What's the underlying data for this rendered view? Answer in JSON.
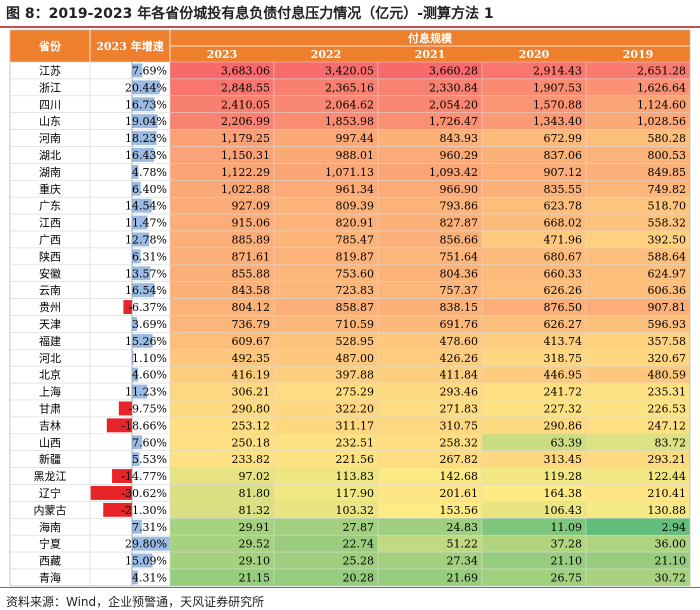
{
  "page": {
    "title": "图 8：2019-2023 年各省份城投有息负债付息压力情况（亿元）-测算方法 1",
    "source": "资料来源：Wind，企业预警通，天风证券研究所"
  },
  "colors": {
    "header_bg": "#ee7f2d",
    "header_text": "#ffffff",
    "grid": "#d9d9d9",
    "bar_pos": "#9bbbe3",
    "bar_neg": "#e8242b",
    "heat_high": "#f8696b",
    "heat_mid": "#ffeb84",
    "heat_low": "#63be7b"
  },
  "chart_data": {
    "type": "table",
    "header": {
      "province": "省份",
      "growth": "2023 年增速",
      "group": "付息规模"
    },
    "years": [
      "2023",
      "2022",
      "2021",
      "2020",
      "2019"
    ],
    "rows": [
      {
        "province": "江苏",
        "growth": "7.69%",
        "g": 7.69,
        "values": [
          3683.06,
          3420.05,
          3660.28,
          2914.43,
          2651.28
        ]
      },
      {
        "province": "浙江",
        "growth": "20.44%",
        "g": 20.44,
        "values": [
          2848.55,
          2365.16,
          2330.84,
          1907.53,
          1626.64
        ]
      },
      {
        "province": "四川",
        "growth": "16.73%",
        "g": 16.73,
        "values": [
          2410.05,
          2064.62,
          2054.2,
          1570.88,
          1124.6
        ]
      },
      {
        "province": "山东",
        "growth": "19.04%",
        "g": 19.04,
        "values": [
          2206.99,
          1853.98,
          1726.47,
          1343.4,
          1028.56
        ]
      },
      {
        "province": "河南",
        "growth": "18.23%",
        "g": 18.23,
        "values": [
          1179.25,
          997.44,
          843.93,
          672.99,
          580.28
        ]
      },
      {
        "province": "湖北",
        "growth": "16.43%",
        "g": 16.43,
        "values": [
          1150.31,
          988.01,
          960.29,
          837.06,
          800.53
        ]
      },
      {
        "province": "湖南",
        "growth": "4.78%",
        "g": 4.78,
        "values": [
          1122.29,
          1071.13,
          1093.42,
          907.12,
          849.85
        ]
      },
      {
        "province": "重庆",
        "growth": "6.40%",
        "g": 6.4,
        "values": [
          1022.88,
          961.34,
          966.9,
          835.55,
          749.82
        ]
      },
      {
        "province": "广东",
        "growth": "14.54%",
        "g": 14.54,
        "values": [
          927.09,
          809.39,
          793.86,
          623.78,
          518.7
        ]
      },
      {
        "province": "江西",
        "growth": "11.47%",
        "g": 11.47,
        "values": [
          915.06,
          820.91,
          827.87,
          668.02,
          558.32
        ]
      },
      {
        "province": "广西",
        "growth": "12.78%",
        "g": 12.78,
        "values": [
          885.89,
          785.47,
          856.66,
          471.96,
          392.5
        ]
      },
      {
        "province": "陕西",
        "growth": "6.31%",
        "g": 6.31,
        "values": [
          871.61,
          819.87,
          751.64,
          680.67,
          588.64
        ]
      },
      {
        "province": "安徽",
        "growth": "13.57%",
        "g": 13.57,
        "values": [
          855.88,
          753.6,
          804.36,
          660.33,
          624.97
        ]
      },
      {
        "province": "云南",
        "growth": "16.54%",
        "g": 16.54,
        "values": [
          843.58,
          723.83,
          757.37,
          626.26,
          606.36
        ]
      },
      {
        "province": "贵州",
        "growth": "-6.37%",
        "g": -6.37,
        "values": [
          804.12,
          858.87,
          838.15,
          876.5,
          907.81
        ]
      },
      {
        "province": "天津",
        "growth": "3.69%",
        "g": 3.69,
        "values": [
          736.79,
          710.59,
          691.76,
          626.27,
          596.93
        ]
      },
      {
        "province": "福建",
        "growth": "15.26%",
        "g": 15.26,
        "values": [
          609.67,
          528.95,
          478.6,
          413.74,
          357.58
        ]
      },
      {
        "province": "河北",
        "growth": "1.10%",
        "g": 1.1,
        "values": [
          492.35,
          487.0,
          426.26,
          318.75,
          320.67
        ]
      },
      {
        "province": "北京",
        "growth": "4.60%",
        "g": 4.6,
        "values": [
          416.19,
          397.88,
          411.84,
          446.95,
          480.59
        ]
      },
      {
        "province": "上海",
        "growth": "11.23%",
        "g": 11.23,
        "values": [
          306.21,
          275.29,
          293.46,
          241.72,
          235.31
        ]
      },
      {
        "province": "甘肃",
        "growth": "-9.75%",
        "g": -9.75,
        "values": [
          290.8,
          322.2,
          271.83,
          227.32,
          226.53
        ]
      },
      {
        "province": "吉林",
        "growth": "-18.66%",
        "g": -18.66,
        "values": [
          253.12,
          311.17,
          310.75,
          290.86,
          247.12
        ]
      },
      {
        "province": "山西",
        "growth": "7.60%",
        "g": 7.6,
        "values": [
          250.18,
          232.51,
          258.32,
          63.39,
          83.72
        ]
      },
      {
        "province": "新疆",
        "growth": "5.53%",
        "g": 5.53,
        "values": [
          233.82,
          221.56,
          267.82,
          313.45,
          293.21
        ]
      },
      {
        "province": "黑龙江",
        "growth": "-14.77%",
        "g": -14.77,
        "values": [
          97.02,
          113.83,
          142.68,
          119.28,
          122.44
        ]
      },
      {
        "province": "辽宁",
        "growth": "-30.62%",
        "g": -30.62,
        "values": [
          81.8,
          117.9,
          201.61,
          164.38,
          210.41
        ]
      },
      {
        "province": "内蒙古",
        "growth": "-21.30%",
        "g": -21.3,
        "values": [
          81.32,
          103.32,
          153.56,
          106.43,
          130.88
        ]
      },
      {
        "province": "海南",
        "growth": "7.31%",
        "g": 7.31,
        "values": [
          29.91,
          27.87,
          24.83,
          11.09,
          2.94
        ]
      },
      {
        "province": "宁夏",
        "growth": "29.80%",
        "g": 29.8,
        "values": [
          29.52,
          22.74,
          51.22,
          37.28,
          36.0
        ]
      },
      {
        "province": "西藏",
        "growth": "15.09%",
        "g": 15.09,
        "values": [
          29.1,
          25.28,
          27.34,
          21.1,
          21.1
        ]
      },
      {
        "province": "青海",
        "growth": "4.31%",
        "g": 4.31,
        "values": [
          21.15,
          20.28,
          21.69,
          26.75,
          30.72
        ]
      }
    ]
  }
}
